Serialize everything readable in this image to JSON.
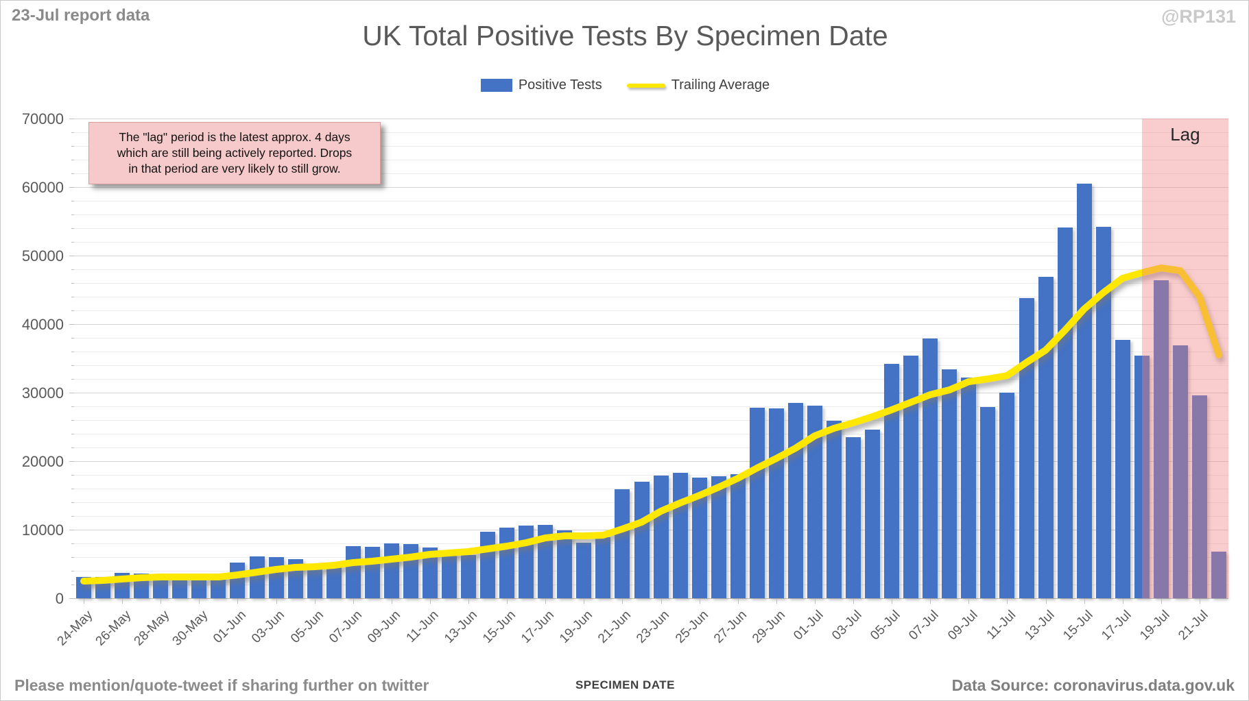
{
  "header": {
    "report_note": "23-Jul report data",
    "watermark": "@RP131",
    "title": "UK Total Positive Tests By Specimen Date"
  },
  "legend": {
    "bar_label": "Positive Tests",
    "line_label": "Trailing Average"
  },
  "annotation": {
    "line1": "The \"lag\" period is the latest approx. 4 days",
    "line2": "which are still being actively reported.  Drops",
    "line3": "in that period are very likely to still grow."
  },
  "lag_region_label": "Lag",
  "footer": {
    "share_note": "Please mention/quote-tweet if sharing further on twitter",
    "xlabel": "SPECIMEN DATE",
    "data_source": "Data Source: coronavirus.data.gov.uk"
  },
  "colors": {
    "bar": "#4472C4",
    "trailing_average": "#FFE800",
    "lag_overlay": "rgba(240,130,130,0.40)",
    "annotation_bg": "#F6CACA"
  },
  "chart_data": {
    "type": "bar",
    "title": "UK Total Positive Tests By Specimen Date",
    "xlabel": "SPECIMEN DATE",
    "ylabel": "",
    "ylim": [
      0,
      70000
    ],
    "ytick_major": 10000,
    "ytick_minor": 2000,
    "grid": "on",
    "legend_position": "top-center",
    "x_tick_label_step": 2,
    "lag_region": {
      "label": "Lag",
      "start_index": 56,
      "note": "last 4 specimen dates still being reported"
    },
    "categories": [
      "24-May",
      "25-May",
      "26-May",
      "27-May",
      "28-May",
      "29-May",
      "30-May",
      "31-May",
      "01-Jun",
      "02-Jun",
      "03-Jun",
      "04-Jun",
      "05-Jun",
      "06-Jun",
      "07-Jun",
      "08-Jun",
      "09-Jun",
      "10-Jun",
      "11-Jun",
      "12-Jun",
      "13-Jun",
      "14-Jun",
      "15-Jun",
      "16-Jun",
      "17-Jun",
      "18-Jun",
      "19-Jun",
      "20-Jun",
      "21-Jun",
      "22-Jun",
      "23-Jun",
      "24-Jun",
      "25-Jun",
      "26-Jun",
      "27-Jun",
      "28-Jun",
      "29-Jun",
      "30-Jun",
      "01-Jul",
      "02-Jul",
      "03-Jul",
      "04-Jul",
      "05-Jul",
      "06-Jul",
      "07-Jul",
      "08-Jul",
      "09-Jul",
      "10-Jul",
      "11-Jul",
      "12-Jul",
      "13-Jul",
      "14-Jul",
      "15-Jul",
      "16-Jul",
      "17-Jul",
      "18-Jul",
      "19-Jul",
      "20-Jul",
      "21-Jul",
      "22-Jul"
    ],
    "series": [
      {
        "name": "Positive Tests",
        "type": "bar",
        "values": [
          3100,
          3100,
          3700,
          3600,
          3000,
          2700,
          2700,
          3200,
          5200,
          6100,
          6000,
          5700,
          4300,
          4500,
          7600,
          7500,
          8000,
          7900,
          7400,
          6900,
          6300,
          9700,
          10300,
          10600,
          10700,
          9900,
          8100,
          8900,
          15900,
          17000,
          17900,
          18300,
          17600,
          17800,
          18100,
          27800,
          27700,
          28500,
          28100,
          25900,
          23500,
          24600,
          34200,
          35400,
          37900,
          33400,
          32200,
          27900,
          30000,
          43800,
          46900,
          54100,
          60500,
          54200,
          37700,
          35400,
          46400,
          36900,
          29600,
          6800
        ]
      },
      {
        "name": "Trailing Average",
        "type": "line",
        "values": [
          2500,
          2600,
          2800,
          3000,
          3100,
          3100,
          3100,
          3100,
          3400,
          3800,
          4200,
          4500,
          4600,
          4800,
          5200,
          5400,
          5700,
          6000,
          6400,
          6600,
          6800,
          7200,
          7600,
          8100,
          8800,
          9100,
          9100,
          9200,
          10100,
          11100,
          12700,
          13900,
          15000,
          16200,
          17500,
          19000,
          20400,
          21900,
          23700,
          24800,
          25600,
          26500,
          27500,
          28600,
          29700,
          30400,
          31600,
          32000,
          32500,
          34400,
          36200,
          39100,
          42200,
          44600,
          46700,
          47500,
          48200,
          47800,
          44000,
          35500
        ]
      }
    ]
  }
}
